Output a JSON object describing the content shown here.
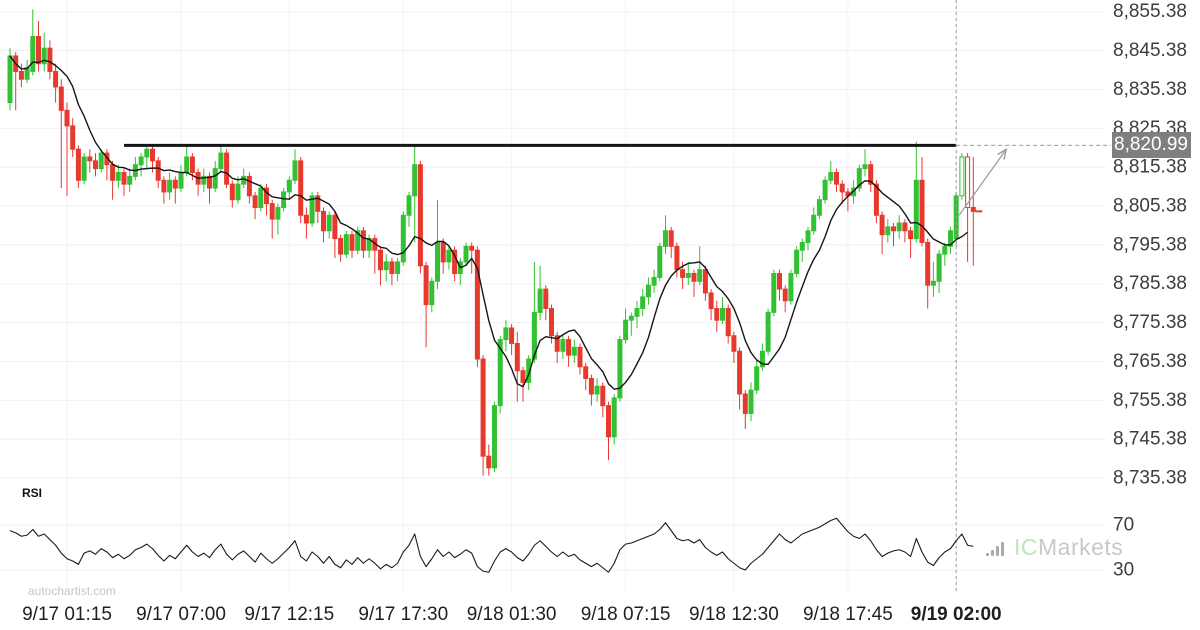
{
  "price_axis": {
    "last_price_label": "8,820.99",
    "badge_bg": "#7f7f7f"
  },
  "rsi_pane": {
    "label": "RSI"
  },
  "footer": {
    "site_text": "autochartist.com"
  },
  "watermark": {
    "ic": "IC",
    "markets": "Markets"
  },
  "chart_data": {
    "type": "candlestick_with_rsi",
    "title": "",
    "ylim": [
      8730,
      8860
    ],
    "grid": true,
    "price_ticks": [
      {
        "label": "8,855.38",
        "value": 8855.38
      },
      {
        "label": "8,845.38",
        "value": 8845.38
      },
      {
        "label": "8,835.38",
        "value": 8835.38
      },
      {
        "label": "8,825.38",
        "value": 8825.38
      },
      {
        "label": "8,815.38",
        "value": 8815.38
      },
      {
        "label": "8,805.38",
        "value": 8805.38
      },
      {
        "label": "8,795.38",
        "value": 8795.38
      },
      {
        "label": "8,785.38",
        "value": 8785.38
      },
      {
        "label": "8,775.38",
        "value": 8775.38
      },
      {
        "label": "8,765.38",
        "value": 8765.38
      },
      {
        "label": "8,755.38",
        "value": 8755.38
      },
      {
        "label": "8,745.38",
        "value": 8745.38
      },
      {
        "label": "8,735.38",
        "value": 8735.38
      }
    ],
    "x_labels": [
      {
        "text": "9/17 01:15",
        "index": 10,
        "bold": false
      },
      {
        "text": "9/17 07:00",
        "index": 30,
        "bold": false
      },
      {
        "text": "9/17 12:15",
        "index": 49,
        "bold": false
      },
      {
        "text": "9/17 17:30",
        "index": 69,
        "bold": false
      },
      {
        "text": "9/18 01:30",
        "index": 88,
        "bold": false
      },
      {
        "text": "9/18 07:15",
        "index": 108,
        "bold": false
      },
      {
        "text": "9/18 12:30",
        "index": 127,
        "bold": false
      },
      {
        "text": "9/18 17:45",
        "index": 147,
        "bold": false
      },
      {
        "text": "9/19 02:00",
        "index": 166,
        "bold": true
      }
    ],
    "candles": [
      [
        8832,
        8846,
        8830,
        8844
      ],
      [
        8844,
        8845,
        8830,
        8840
      ],
      [
        8840,
        8842,
        8836,
        8838
      ],
      [
        8838,
        8843,
        8837,
        8841
      ],
      [
        8840,
        8856,
        8839,
        8849
      ],
      [
        8849,
        8853,
        8840,
        8842
      ],
      [
        8842,
        8850,
        8840,
        8846
      ],
      [
        8846,
        8848,
        8838,
        8840
      ],
      [
        8840,
        8842,
        8832,
        8836
      ],
      [
        8836,
        8838,
        8810,
        8830
      ],
      [
        8830,
        8832,
        8808,
        8826
      ],
      [
        8826,
        8828,
        8818,
        8820
      ],
      [
        8820,
        8821,
        8810,
        8812
      ],
      [
        8812,
        8819,
        8811,
        8818
      ],
      [
        8818,
        8820,
        8814,
        8817
      ],
      [
        8817,
        8819,
        8813,
        8815
      ],
      [
        8815,
        8820,
        8814,
        8819
      ],
      [
        8819,
        8820,
        8812,
        8816
      ],
      [
        8816,
        8817,
        8807,
        8812
      ],
      [
        8812,
        8816,
        8810,
        8814
      ],
      [
        8814,
        8815,
        8808,
        8811
      ],
      [
        8811,
        8815,
        8809,
        8813
      ],
      [
        8813,
        8818,
        8812,
        8816
      ],
      [
        8816,
        8819,
        8813,
        8818
      ],
      [
        8818,
        8821,
        8815,
        8820
      ],
      [
        8820,
        8821,
        8814,
        8817
      ],
      [
        8817,
        8818,
        8810,
        8812
      ],
      [
        8812,
        8813,
        8806,
        8809
      ],
      [
        8809,
        8814,
        8807,
        8812
      ],
      [
        8812,
        8813,
        8806,
        8810
      ],
      [
        8810,
        8816,
        8809,
        8814
      ],
      [
        8814,
        8821,
        8813,
        8818
      ],
      [
        8818,
        8819,
        8812,
        8814
      ],
      [
        8814,
        8815,
        8808,
        8811
      ],
      [
        8811,
        8815,
        8809,
        8813
      ],
      [
        8813,
        8814,
        8806,
        8810
      ],
      [
        8810,
        8817,
        8809,
        8815
      ],
      [
        8815,
        8821,
        8814,
        8819
      ],
      [
        8819,
        8820,
        8810,
        8811
      ],
      [
        8811,
        8812,
        8805,
        8807
      ],
      [
        8807,
        8813,
        8806,
        8811
      ],
      [
        8811,
        8815,
        8810,
        8813
      ],
      [
        8813,
        8814,
        8806,
        8808
      ],
      [
        8808,
        8809,
        8802,
        8805
      ],
      [
        8805,
        8811,
        8804,
        8810
      ],
      [
        8810,
        8811,
        8803,
        8806
      ],
      [
        8806,
        8807,
        8797,
        8802
      ],
      [
        8802,
        8806,
        8798,
        8805
      ],
      [
        8805,
        8810,
        8804,
        8809
      ],
      [
        8809,
        8813,
        8807,
        8812
      ],
      [
        8812,
        8820,
        8811,
        8817
      ],
      [
        8817,
        8818,
        8801,
        8803
      ],
      [
        8803,
        8805,
        8797,
        8801
      ],
      [
        8801,
        8809,
        8800,
        8808
      ],
      [
        8808,
        8809,
        8801,
        8804
      ],
      [
        8804,
        8805,
        8796,
        8799
      ],
      [
        8799,
        8804,
        8797,
        8803
      ],
      [
        8803,
        8804,
        8792,
        8797
      ],
      [
        8797,
        8798,
        8791,
        8793
      ],
      [
        8793,
        8799,
        8792,
        8798
      ],
      [
        8798,
        8799,
        8792,
        8794
      ],
      [
        8794,
        8800,
        8793,
        8799
      ],
      [
        8799,
        8800,
        8792,
        8794
      ],
      [
        8794,
        8798,
        8792,
        8797
      ],
      [
        8797,
        8798,
        8788,
        8794
      ],
      [
        8794,
        8795,
        8785,
        8789
      ],
      [
        8789,
        8793,
        8786,
        8791
      ],
      [
        8791,
        8792,
        8785,
        8788
      ],
      [
        8788,
        8792,
        8786,
        8791
      ],
      [
        8791,
        8804,
        8790,
        8803
      ],
      [
        8803,
        8809,
        8800,
        8808
      ],
      [
        8808,
        8821,
        8796,
        8816
      ],
      [
        8816,
        8817,
        8788,
        8790
      ],
      [
        8790,
        8791,
        8769,
        8780
      ],
      [
        8780,
        8787,
        8778,
        8786
      ],
      [
        8786,
        8807,
        8784,
        8796
      ],
      [
        8796,
        8797,
        8788,
        8791
      ],
      [
        8791,
        8795,
        8789,
        8794
      ],
      [
        8794,
        8795,
        8786,
        8788
      ],
      [
        8788,
        8792,
        8785,
        8791
      ],
      [
        8791,
        8796,
        8790,
        8795
      ],
      [
        8795,
        8796,
        8788,
        8794
      ],
      [
        8794,
        8795,
        8764,
        8766
      ],
      [
        8766,
        8767,
        8736,
        8741
      ],
      [
        8741,
        8744,
        8736,
        8738
      ],
      [
        8738,
        8755,
        8737,
        8754
      ],
      [
        8754,
        8772,
        8752,
        8771
      ],
      [
        8771,
        8776,
        8768,
        8774
      ],
      [
        8774,
        8775,
        8767,
        8770
      ],
      [
        8770,
        8773,
        8755,
        8763
      ],
      [
        8763,
        8764,
        8755,
        8760
      ],
      [
        8760,
        8767,
        8758,
        8766
      ],
      [
        8766,
        8791,
        8765,
        8778
      ],
      [
        8778,
        8790,
        8776,
        8784
      ],
      [
        8784,
        8785,
        8776,
        8779
      ],
      [
        8779,
        8780,
        8770,
        8772
      ],
      [
        8772,
        8773,
        8765,
        8768
      ],
      [
        8768,
        8772,
        8766,
        8771
      ],
      [
        8771,
        8772,
        8764,
        8767
      ],
      [
        8767,
        8771,
        8765,
        8769
      ],
      [
        8769,
        8770,
        8762,
        8764
      ],
      [
        8764,
        8765,
        8758,
        8761
      ],
      [
        8761,
        8762,
        8754,
        8757
      ],
      [
        8757,
        8761,
        8755,
        8759
      ],
      [
        8759,
        8760,
        8751,
        8754
      ],
      [
        8754,
        8755,
        8740,
        8746
      ],
      [
        8746,
        8757,
        8744,
        8756
      ],
      [
        8756,
        8772,
        8755,
        8771
      ],
      [
        8771,
        8779,
        8770,
        8776
      ],
      [
        8776,
        8778,
        8772,
        8777
      ],
      [
        8777,
        8781,
        8774,
        8779
      ],
      [
        8779,
        8784,
        8777,
        8782
      ],
      [
        8782,
        8787,
        8780,
        8785
      ],
      [
        8785,
        8789,
        8783,
        8787
      ],
      [
        8787,
        8796,
        8786,
        8795
      ],
      [
        8795,
        8803,
        8793,
        8799
      ],
      [
        8799,
        8800,
        8792,
        8795
      ],
      [
        8795,
        8796,
        8787,
        8789
      ],
      [
        8789,
        8791,
        8784,
        8787
      ],
      [
        8787,
        8791,
        8785,
        8788
      ],
      [
        8788,
        8789,
        8782,
        8786
      ],
      [
        8786,
        8795,
        8785,
        8789
      ],
      [
        8789,
        8790,
        8781,
        8783
      ],
      [
        8783,
        8784,
        8776,
        8779
      ],
      [
        8779,
        8781,
        8773,
        8776
      ],
      [
        8776,
        8782,
        8775,
        8779
      ],
      [
        8779,
        8780,
        8770,
        8772
      ],
      [
        8772,
        8773,
        8765,
        8768
      ],
      [
        8768,
        8769,
        8753,
        8757
      ],
      [
        8757,
        8758,
        8748,
        8752
      ],
      [
        8752,
        8760,
        8750,
        8758
      ],
      [
        8758,
        8766,
        8757,
        8764
      ],
      [
        8764,
        8770,
        8763,
        8768
      ],
      [
        8768,
        8779,
        8767,
        8778
      ],
      [
        8778,
        8789,
        8777,
        8788
      ],
      [
        8788,
        8789,
        8781,
        8784
      ],
      [
        8784,
        8785,
        8778,
        8781
      ],
      [
        8781,
        8789,
        8780,
        8788
      ],
      [
        8788,
        8795,
        8787,
        8794
      ],
      [
        8794,
        8797,
        8791,
        8796
      ],
      [
        8796,
        8800,
        8794,
        8799
      ],
      [
        8799,
        8805,
        8798,
        8803
      ],
      [
        8803,
        8808,
        8802,
        8807
      ],
      [
        8807,
        8813,
        8806,
        8812
      ],
      [
        8812,
        8817,
        8811,
        8814
      ],
      [
        8814,
        8815,
        8809,
        8811
      ],
      [
        8811,
        8812,
        8806,
        8809
      ],
      [
        8809,
        8810,
        8804,
        8808
      ],
      [
        8808,
        8812,
        8806,
        8810
      ],
      [
        8810,
        8816,
        8809,
        8815
      ],
      [
        8815,
        8820,
        8813,
        8816
      ],
      [
        8816,
        8817,
        8809,
        8811
      ],
      [
        8811,
        8812,
        8801,
        8803
      ],
      [
        8803,
        8804,
        8793,
        8798
      ],
      [
        8798,
        8802,
        8796,
        8800
      ],
      [
        8800,
        8801,
        8795,
        8799
      ],
      [
        8799,
        8803,
        8797,
        8801
      ],
      [
        8801,
        8802,
        8796,
        8799
      ],
      [
        8799,
        8800,
        8792,
        8797
      ],
      [
        8797,
        8822,
        8796,
        8812
      ],
      [
        8812,
        8818,
        8795,
        8796
      ],
      [
        8796,
        8797,
        8779,
        8785
      ],
      [
        8785,
        8791,
        8782,
        8786
      ],
      [
        8786,
        8794,
        8783,
        8793
      ],
      [
        8793,
        8796,
        8790,
        8795
      ],
      [
        8795,
        8800,
        8793,
        8799
      ],
      [
        8797,
        8809,
        8795,
        8808
      ],
      [
        8808,
        8819,
        8807,
        8818
      ],
      [
        8818,
        8819,
        8791,
        8805
      ],
      [
        8805,
        8818,
        8790,
        8804
      ]
    ],
    "hollow_from_index": 167,
    "ma_period": 8,
    "resistance": {
      "level": 8820.99,
      "start_index": 20,
      "end_index": 166
    },
    "vline_index": 166,
    "last_price": 8820.99,
    "current_close": 8804,
    "rsi": {
      "levels": [
        {
          "label": "70",
          "value": 70
        },
        {
          "label": "30",
          "value": 30
        }
      ],
      "values": [
        65,
        63,
        60,
        61,
        66,
        60,
        62,
        57,
        52,
        45,
        40,
        38,
        35,
        45,
        47,
        44,
        49,
        46,
        41,
        44,
        40,
        43,
        48,
        50,
        53,
        49,
        43,
        38,
        43,
        40,
        46,
        52,
        46,
        42,
        45,
        41,
        48,
        53,
        44,
        39,
        44,
        47,
        42,
        37,
        45,
        40,
        36,
        40,
        45,
        50,
        56,
        42,
        38,
        46,
        42,
        36,
        42,
        35,
        32,
        39,
        35,
        41,
        36,
        40,
        36,
        31,
        35,
        32,
        36,
        46,
        52,
        62,
        42,
        33,
        40,
        48,
        42,
        46,
        41,
        44,
        48,
        45,
        33,
        29,
        28,
        38,
        46,
        49,
        46,
        41,
        38,
        44,
        52,
        56,
        51,
        46,
        42,
        46,
        42,
        44,
        39,
        36,
        33,
        36,
        32,
        28,
        36,
        48,
        53,
        54,
        56,
        58,
        60,
        62,
        66,
        72,
        65,
        58,
        56,
        57,
        54,
        57,
        50,
        46,
        43,
        46,
        40,
        36,
        32,
        30,
        36,
        40,
        44,
        50,
        56,
        62,
        57,
        54,
        58,
        62,
        64,
        66,
        68,
        71,
        74,
        76,
        70,
        64,
        60,
        58,
        62,
        56,
        48,
        42,
        45,
        47,
        48,
        46,
        42,
        58,
        46,
        37,
        34,
        41,
        46,
        49,
        56,
        62,
        52,
        51
      ]
    },
    "colors": {
      "up": "#33c133",
      "down": "#e8392f",
      "ma": "#161616",
      "rsi_line": "#1a1a1a",
      "resistance": "#141414",
      "annotation": "#9b9b9b",
      "grid_h": "#efefef",
      "grid_v": "#f3f3f3",
      "tick_text": "#3d3d3d",
      "xlabel_text": "#1f1f1f"
    }
  }
}
